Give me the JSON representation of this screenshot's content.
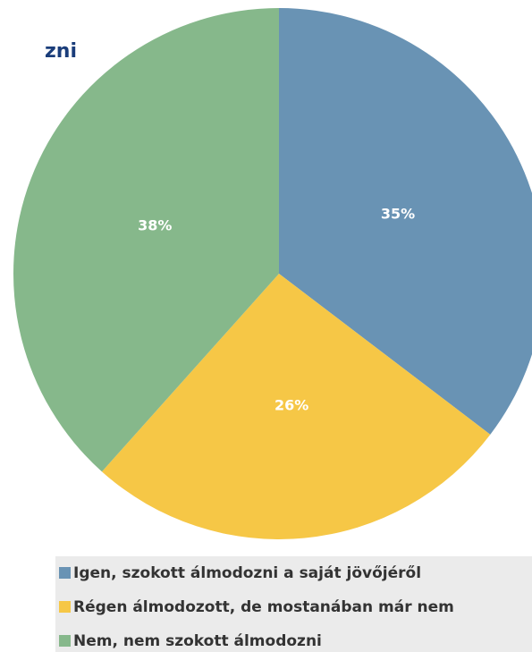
{
  "chart_data": {
    "type": "pie",
    "title": "zni",
    "categories": [
      "Igen, szokott álmodozni a saját jövőjéről",
      "Régen álmodozott, de mostanában már nem",
      "Nem, nem szokott álmodozni"
    ],
    "values": [
      35,
      26,
      38
    ],
    "value_labels": [
      "35%",
      "26%",
      "38%"
    ],
    "colors": [
      "#6993b4",
      "#f6c746",
      "#86b88b"
    ]
  }
}
